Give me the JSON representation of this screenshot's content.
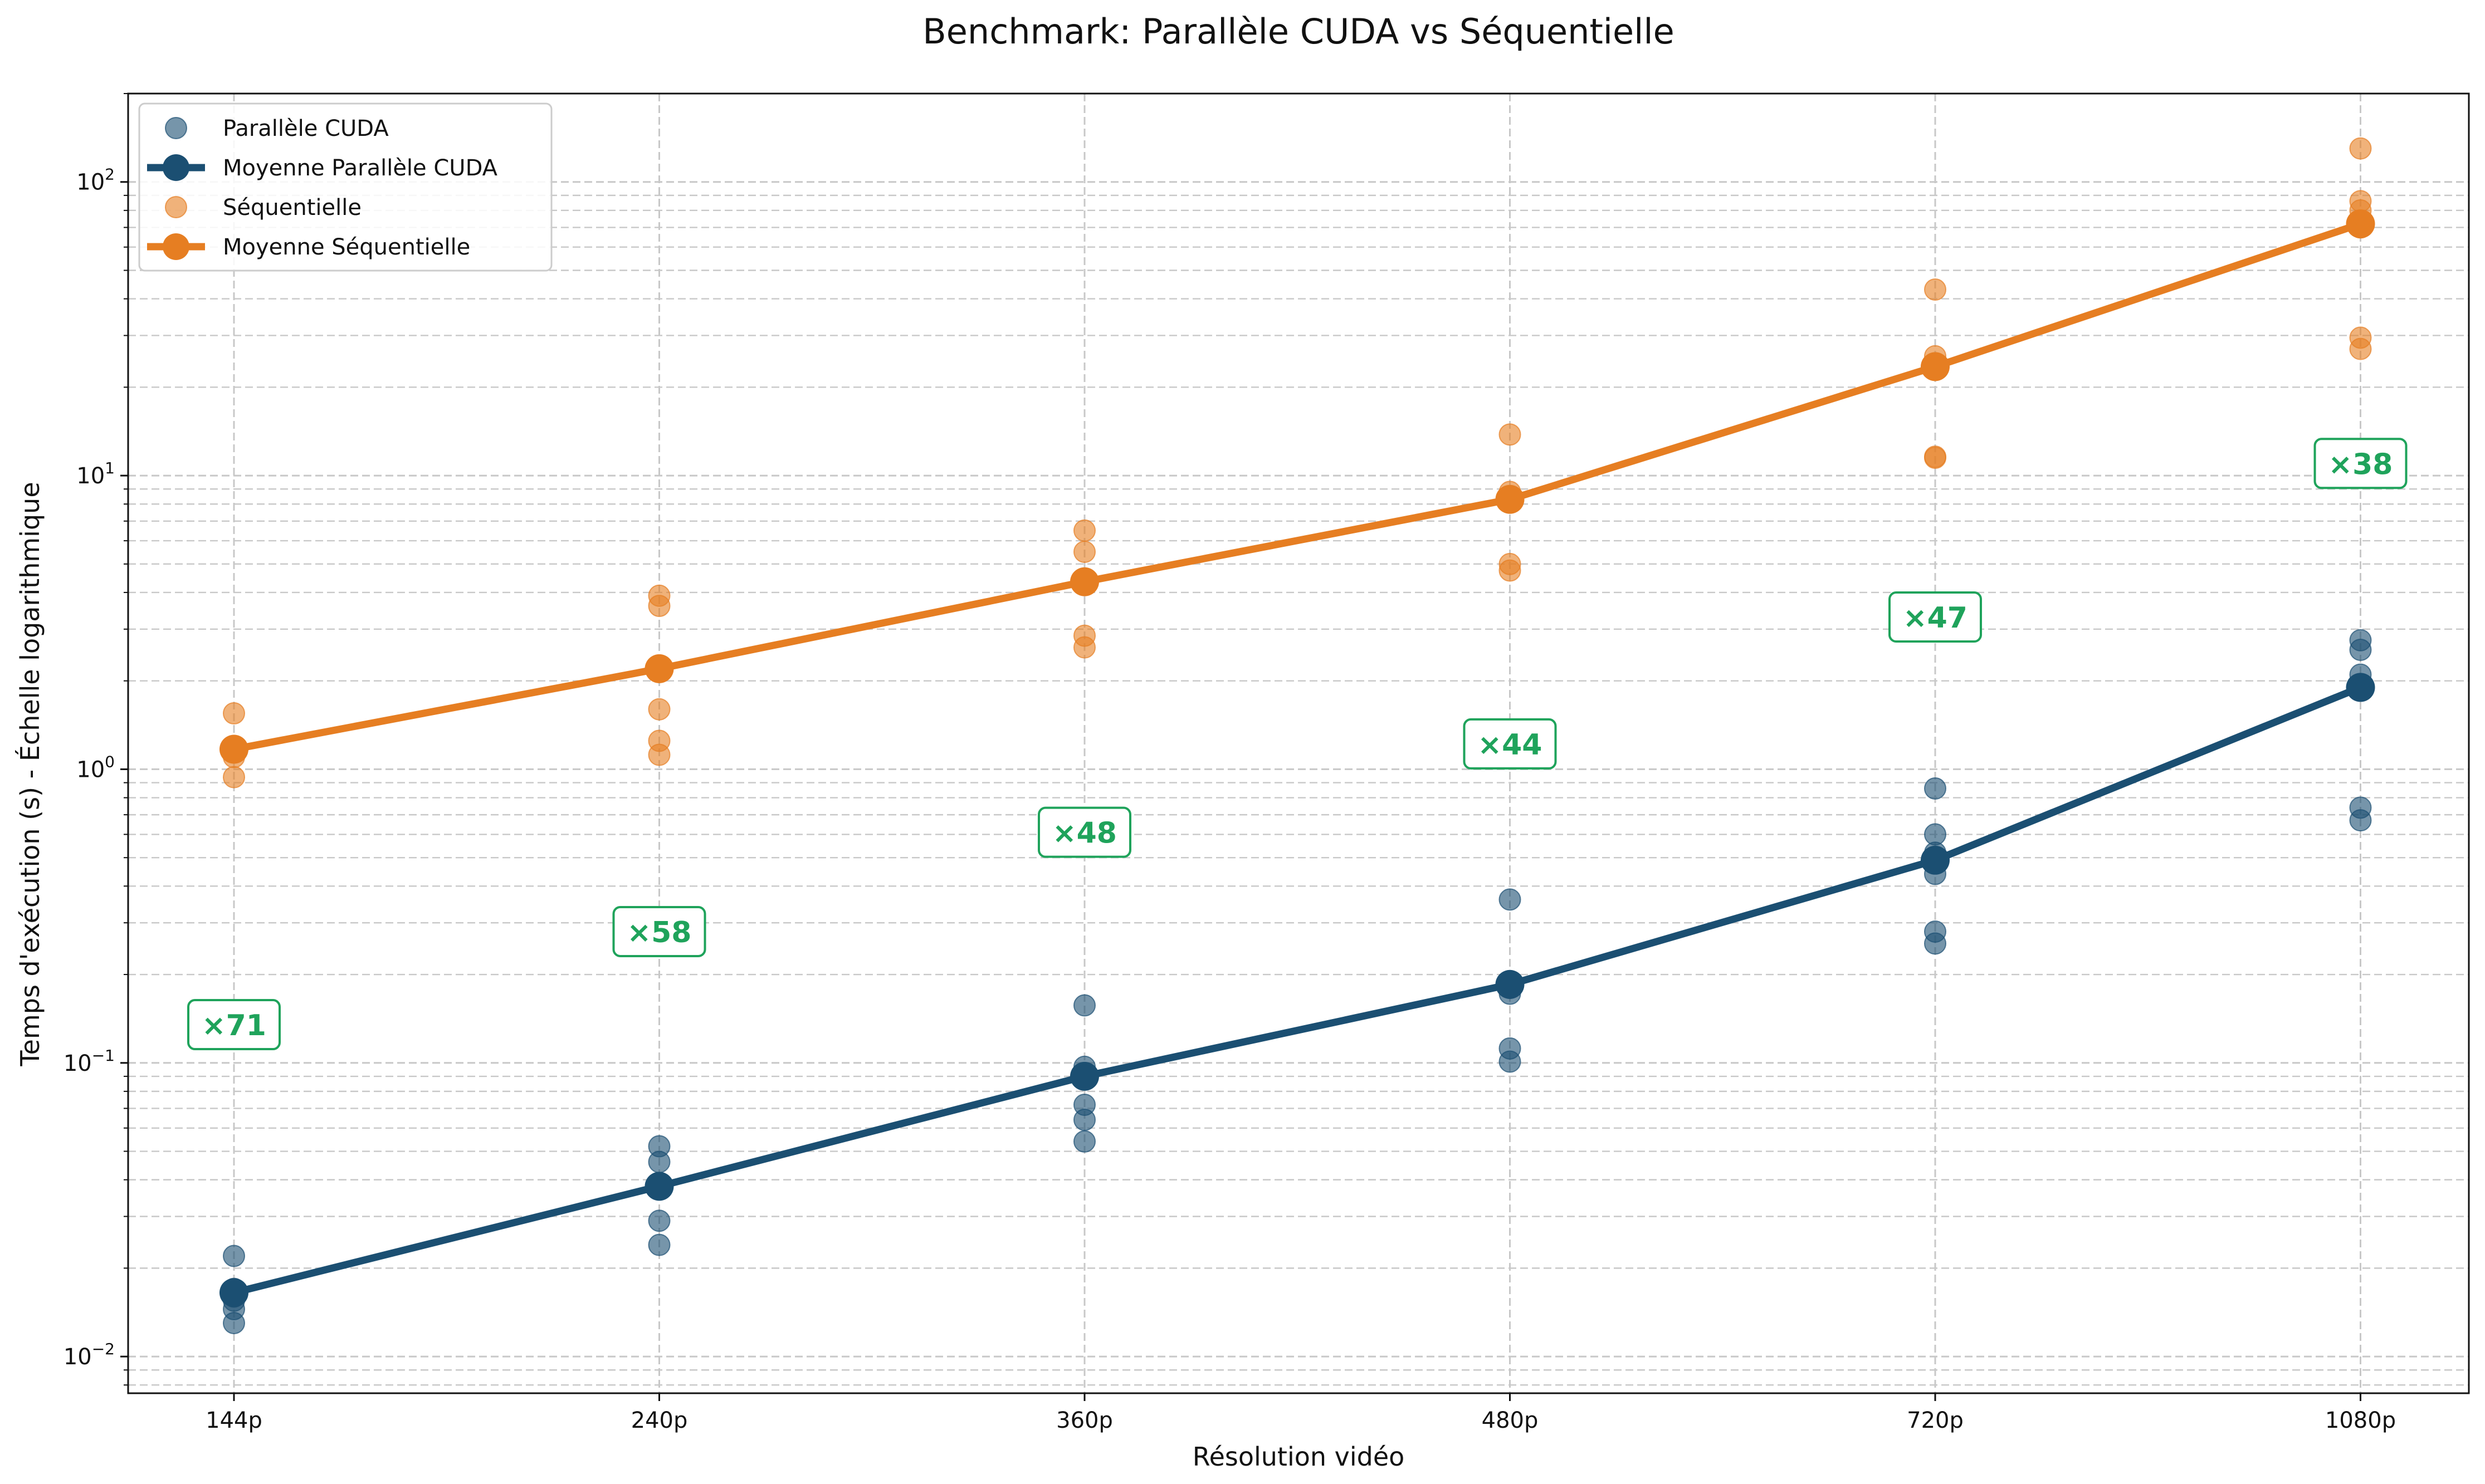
{
  "chart_data": {
    "type": "scatter",
    "title": "Benchmark: Parallèle CUDA vs Séquentielle",
    "xlabel": "Résolution vidéo",
    "ylabel": "Temps d'exécution (s) - Échelle logarithmique",
    "y_scale": "log",
    "ylim": [
      0.0075,
      200
    ],
    "y_major_ticks": [
      {
        "value": 0.01,
        "base": "10",
        "exp": "−2"
      },
      {
        "value": 0.1,
        "base": "10",
        "exp": "−1"
      },
      {
        "value": 1,
        "base": "10",
        "exp": "0"
      },
      {
        "value": 10,
        "base": "10",
        "exp": "1"
      },
      {
        "value": 100,
        "base": "10",
        "exp": "2"
      }
    ],
    "grid": true,
    "legend_position": "top-left",
    "categories": [
      "144p",
      "240p",
      "360p",
      "480p",
      "720p",
      "1080p"
    ],
    "colors": {
      "parallel": "#1b4f72",
      "sequential": "#e67e22",
      "speedup": "#1fa35b",
      "grid": "#c8c8c8"
    },
    "series": [
      {
        "name": "Parallèle CUDA",
        "kind": "scatter",
        "color": "#1b4f72",
        "points": [
          [
            0.022,
            0.017,
            0.016,
            0.0155,
            0.0145,
            0.013
          ],
          [
            0.052,
            0.046,
            0.039,
            0.038,
            0.029,
            0.024
          ],
          [
            0.157,
            0.097,
            0.091,
            0.088,
            0.072,
            0.064,
            0.054
          ],
          [
            0.36,
            0.19,
            0.18,
            0.172,
            0.112,
            0.101
          ],
          [
            0.86,
            0.6,
            0.52,
            0.5,
            0.44,
            0.28,
            0.255
          ],
          [
            2.75,
            2.55,
            2.1,
            1.9,
            0.74,
            0.67
          ]
        ]
      },
      {
        "name": "Moyenne Parallèle CUDA",
        "kind": "line",
        "color": "#1b4f72",
        "values": [
          0.0165,
          0.038,
          0.09,
          0.185,
          0.49,
          1.9
        ]
      },
      {
        "name": "Séquentielle",
        "kind": "scatter",
        "color": "#e67e22",
        "points": [
          [
            1.55,
            1.2,
            1.1,
            0.94
          ],
          [
            3.9,
            3.6,
            2.2,
            1.6,
            1.25,
            1.12
          ],
          [
            6.5,
            5.5,
            4.4,
            2.85,
            2.6
          ],
          [
            13.8,
            8.8,
            8.2,
            5.0,
            4.75
          ],
          [
            43.0,
            25.5,
            24.0,
            23.0,
            11.6,
            11.5
          ],
          [
            130.0,
            86.0,
            80.0,
            73.0,
            70.0,
            29.5,
            27.0
          ]
        ]
      },
      {
        "name": "Moyenne Séquentielle",
        "kind": "line",
        "color": "#e67e22",
        "values": [
          1.17,
          2.2,
          4.35,
          8.3,
          23.5,
          72.0
        ]
      }
    ],
    "speedups": [
      {
        "category": "144p",
        "label": "×71",
        "y": 0.135
      },
      {
        "category": "240p",
        "label": "×58",
        "y": 0.28
      },
      {
        "category": "360p",
        "label": "×48",
        "y": 0.61
      },
      {
        "category": "480p",
        "label": "×44",
        "y": 1.22
      },
      {
        "category": "720p",
        "label": "×47",
        "y": 3.3
      },
      {
        "category": "1080p",
        "label": "×38",
        "y": 11.0
      }
    ]
  }
}
